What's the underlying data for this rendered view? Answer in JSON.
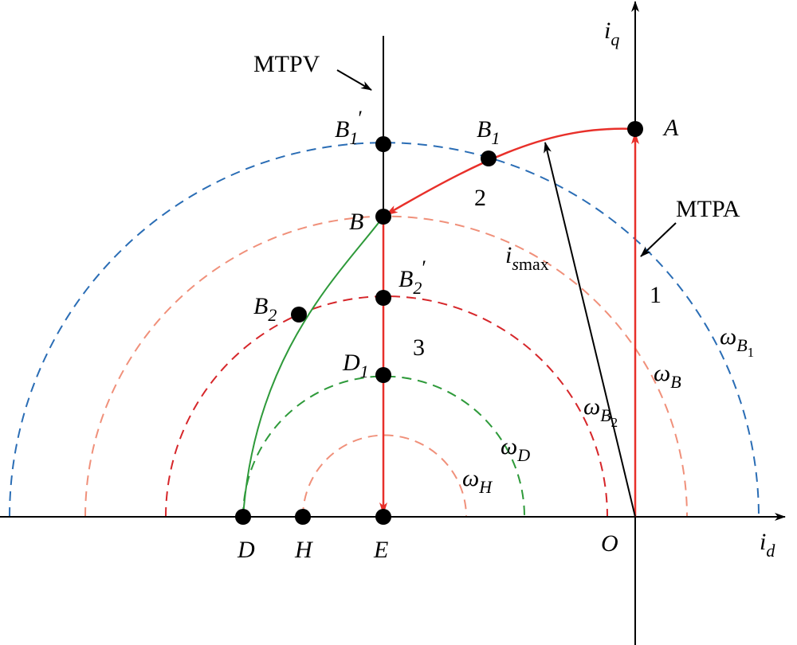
{
  "texts": {
    "mtpv": "MTPV",
    "mtpa": "MTPA",
    "region1": "1",
    "region2": "2",
    "region3": "3"
  },
  "labels": [
    {
      "main": "i",
      "sub": "q"
    },
    {
      "main": "i",
      "sub": "d"
    },
    {
      "main": "O"
    },
    {
      "main": "A"
    },
    {
      "main": "B",
      "sub": "1"
    },
    {
      "main": "B",
      "sub": "1",
      "prime": "′"
    },
    {
      "main": "B"
    },
    {
      "main": "B",
      "sub": "2",
      "prime": "′"
    },
    {
      "main": "B",
      "sub": "2"
    },
    {
      "main": "D",
      "sub": "1"
    },
    {
      "main": "D"
    },
    {
      "main": "H"
    },
    {
      "main": "E"
    },
    {
      "main": "i",
      "sub": "s",
      "sub_plain": "max"
    },
    {
      "main": "ω",
      "sub": "B",
      "sub2": "1"
    },
    {
      "main": "ω",
      "sub": "B"
    },
    {
      "main": "ω",
      "sub": "B",
      "sub2": "2"
    },
    {
      "main": "ω",
      "sub": "D"
    },
    {
      "main": "ω",
      "sub": "H"
    }
  ]
}
